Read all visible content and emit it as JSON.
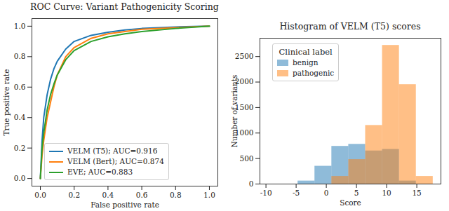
{
  "chart_data": [
    {
      "type": "line",
      "title": "ROC Curve: Variant Pathogenicity Scoring",
      "x_label": "False positive rate",
      "y_label": "True positive rate",
      "x": [
        0,
        0.01,
        0.02,
        0.04,
        0.06,
        0.08,
        0.1,
        0.15,
        0.2,
        0.3,
        0.4,
        0.5,
        0.6,
        0.8,
        1
      ],
      "series": [
        {
          "name": "VELM (T5); AUC=0.916",
          "color": "#1f77b4",
          "values": [
            0,
            0.25,
            0.4,
            0.55,
            0.65,
            0.72,
            0.77,
            0.85,
            0.9,
            0.94,
            0.96,
            0.975,
            0.985,
            0.995,
            1
          ]
        },
        {
          "name": "VELM (Bert); AUC=0.874",
          "color": "#ff7f0e",
          "values": [
            0,
            0.15,
            0.25,
            0.4,
            0.5,
            0.6,
            0.68,
            0.8,
            0.86,
            0.92,
            0.95,
            0.965,
            0.98,
            0.99,
            1
          ]
        },
        {
          "name": "EVE; AUC=0.883",
          "color": "#2ca02c",
          "values": [
            0,
            0.2,
            0.3,
            0.45,
            0.55,
            0.62,
            0.68,
            0.78,
            0.84,
            0.9,
            0.93,
            0.95,
            0.965,
            0.985,
            1
          ]
        }
      ],
      "xlim": [
        -0.05,
        1.05
      ],
      "ylim": [
        -0.05,
        1.05
      ],
      "xticks": [
        {
          "value": 0,
          "label": "0.0"
        },
        0.2,
        0.4,
        0.6,
        0.8,
        {
          "value": 1,
          "label": "1.0"
        }
      ],
      "yticks": [
        {
          "value": 0,
          "label": "0.0"
        },
        0.2,
        0.4,
        0.6,
        0.8,
        {
          "value": 1,
          "label": "1.0"
        }
      ],
      "grid": false,
      "legend": "lower left"
    },
    {
      "type": "histogram",
      "title": "Histogram of VELM (T5) scores",
      "x_label": "Score",
      "y_label": "Number of variants",
      "legend_title": "Clinical label",
      "bins": [
        -4.7,
        -1.9,
        0.9,
        3.7,
        6.5,
        9.3,
        12.1,
        14.9,
        17.7
      ],
      "series": [
        {
          "name": "benign",
          "color": "#1f77b4",
          "values": [
            60,
            350,
            740,
            780,
            650,
            680,
            60,
            0
          ]
        },
        {
          "name": "pathogenic",
          "color": "#ff7f0e",
          "values": [
            0,
            0,
            150,
            480,
            1150,
            2720,
            1950,
            150
          ]
        }
      ],
      "xlim": [
        -11,
        19
      ],
      "ylim": [
        0,
        2860
      ],
      "xticks": [
        -10,
        -5,
        0,
        5,
        10,
        15
      ],
      "yticks": [
        0,
        500,
        1000,
        1500,
        2000,
        2500
      ],
      "grid": false,
      "legend": "upper left"
    }
  ]
}
